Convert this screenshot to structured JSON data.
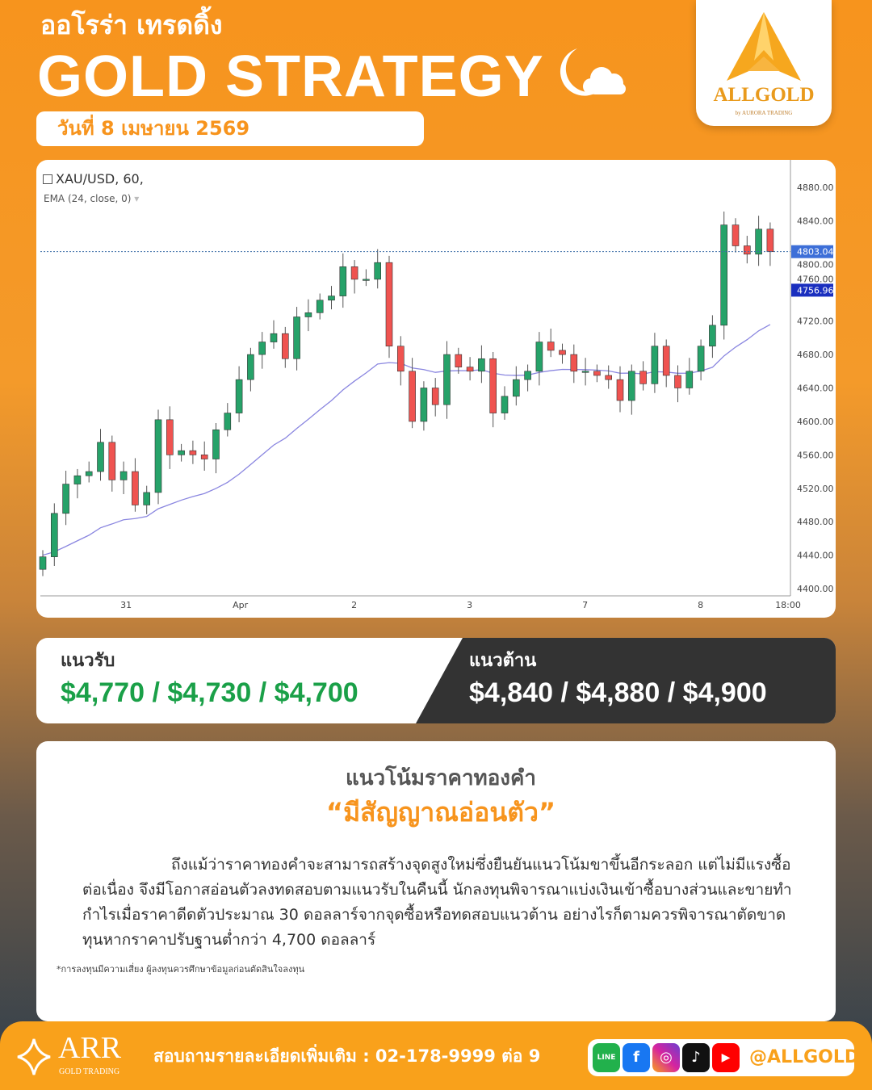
{
  "header": {
    "subtitle": "ออโรร่า เทรดดิ้ง",
    "title": "GOLD STRATEGY",
    "date": "วันที่  8  เมษายน  2569",
    "icon": "moon-cloud-icon"
  },
  "logo": {
    "name": "ALLGOLD",
    "by": "by AURORA TRADING"
  },
  "chart_data": {
    "type": "candlestick",
    "symbol": "XAU/USD, 60,",
    "indicator": "EMA (24, close, 0)",
    "ylim": [
      4400,
      4880
    ],
    "yticks": [
      "4880.00",
      "4840.00",
      "4800.00",
      "4760.00",
      "4720.00",
      "4680.00",
      "4640.00",
      "4600.00",
      "4560.00",
      "4520.00",
      "4480.00",
      "4440.00",
      "4400.00"
    ],
    "xticks": [
      {
        "label": "31",
        "index": 7
      },
      {
        "label": "Apr",
        "index": 17
      },
      {
        "label": "2",
        "index": 27
      },
      {
        "label": "3",
        "index": 37
      },
      {
        "label": "7",
        "index": 47
      },
      {
        "label": "8",
        "index": 57
      },
      {
        "label": "18:00",
        "index": 64
      }
    ],
    "close": [
      4438,
      4490,
      4525,
      4535,
      4540,
      4575,
      4530,
      4540,
      4500,
      4515,
      4602,
      4560,
      4565,
      4560,
      4555,
      4590,
      4610,
      4650,
      4680,
      4695,
      4705,
      4675,
      4725,
      4730,
      4745,
      4750,
      4785,
      4770,
      4770,
      4790,
      4690,
      4660,
      4600,
      4640,
      4620,
      4680,
      4665,
      4660,
      4675,
      4610,
      4630,
      4650,
      4660,
      4695,
      4685,
      4680,
      4660,
      4660,
      4655,
      4650,
      4625,
      4660,
      4645,
      4690,
      4655,
      4640,
      4660,
      4690,
      4715,
      4835,
      4810,
      4800,
      4830,
      4803
    ],
    "last_price": "4803.04",
    "ema_value": "4756.96",
    "colors": {
      "up": "#26a269",
      "down": "#ef5350",
      "ema": "#8a86e0",
      "price_tag": "#3d6fd8",
      "ema_tag": "#1a2fbf"
    }
  },
  "levels": {
    "support_label": "แนวรับ",
    "support": "$4,770 / $4,730 / $4,700",
    "resistance_label": "แนวต้าน",
    "resistance": "$4,840 / $4,880 / $4,900"
  },
  "trend": {
    "heading": "แนวโน้มราคาทองคำ",
    "signal": "“มีสัญญาณอ่อนตัว”",
    "body": "ถึงแม้ว่าราคาทองคำจะสามารถสร้างจุดสูงใหม่ซึ่งยืนยันแนวโน้มขาขึ้นอีกระลอก แต่ไม่มีแรงซื้อต่อเนื่อง จึงมีโอกาสอ่อนตัวลงทดสอบตามแนวรับในคืนนี้  นักลงทุนพิจารณาแบ่งเงินเข้าซื้อบางส่วนและขายทำกำไรเมื่อราคาดีดตัวประมาณ 30 ดอลลาร์จากจุดซื้อหรือทดสอบแนวต้าน  อย่างไรก็ตามควรพิจารณาตัดขาดทุนหากราคาปรับฐานต่ำกว่า 4,700 ดอลลาร์",
    "disclaimer": "*การลงทุนมีความเสี่ยง ผู้ลงทุนควรศึกษาข้อมูลก่อนตัดสินใจลงทุน"
  },
  "footer": {
    "brand": "ARR",
    "brand_sub": "GOLD TRADING",
    "contact": "สอบถามรายละเอียดเพิ่มเติม : 02-178-9999 ต่อ 9",
    "handle": "@ALLGOLD",
    "socials": [
      "line",
      "facebook",
      "instagram",
      "tiktok",
      "youtube"
    ],
    "line_text": "LINE"
  }
}
